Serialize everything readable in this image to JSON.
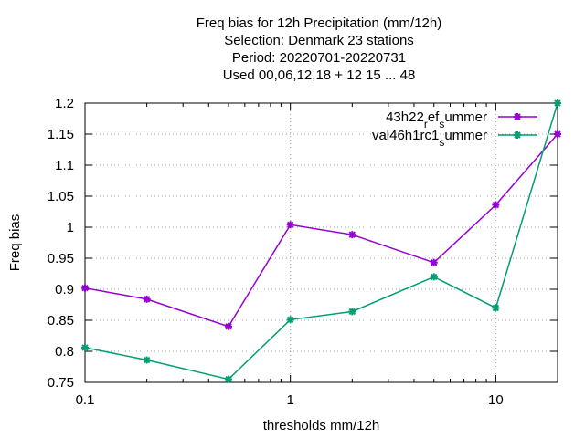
{
  "chart_data": {
    "type": "line",
    "title_lines": [
      "Freq bias  for 12h Precipitation (mm/12h)",
      "Selection: Denmark      23 stations",
      "Period: 20220701-20220731",
      "Used  00,06,12,18  + 12 15 ... 48"
    ],
    "xlabel": "thresholds mm/12h",
    "ylabel": "Freq bias",
    "xscale": "log",
    "xlim": [
      0.1,
      20
    ],
    "ylim": [
      0.75,
      1.2
    ],
    "xticks": [
      {
        "value": 0.1,
        "label": "0.1"
      },
      {
        "value": 1,
        "label": "1"
      },
      {
        "value": 10,
        "label": "10"
      }
    ],
    "yticks": [
      {
        "value": 0.75,
        "label": "0.75"
      },
      {
        "value": 0.8,
        "label": "0.8"
      },
      {
        "value": 0.85,
        "label": "0.85"
      },
      {
        "value": 0.9,
        "label": "0.9"
      },
      {
        "value": 0.95,
        "label": "0.95"
      },
      {
        "value": 1.0,
        "label": "1"
      },
      {
        "value": 1.05,
        "label": "1.05"
      },
      {
        "value": 1.1,
        "label": "1.1"
      },
      {
        "value": 1.15,
        "label": "1.15"
      },
      {
        "value": 1.2,
        "label": "1.2"
      }
    ],
    "grid": true,
    "legend_position": "top-right",
    "x": [
      0.1,
      0.2,
      0.5,
      1,
      2,
      5,
      10,
      20
    ],
    "series": [
      {
        "name": "43h22",
        "name_sub1": "r",
        "name_mid": "ef",
        "name_sub2": "s",
        "name_tail": "ummer",
        "color": "#9400d3",
        "values": [
          0.902,
          0.884,
          0.84,
          1.004,
          0.988,
          0.943,
          1.036,
          1.15
        ]
      },
      {
        "name": "val46h1rc1",
        "name_sub1": "",
        "name_mid": "",
        "name_sub2": "s",
        "name_tail": "ummer",
        "color": "#009e73",
        "values": [
          0.806,
          0.786,
          0.755,
          0.851,
          0.864,
          0.92,
          0.87,
          1.2
        ]
      }
    ]
  }
}
